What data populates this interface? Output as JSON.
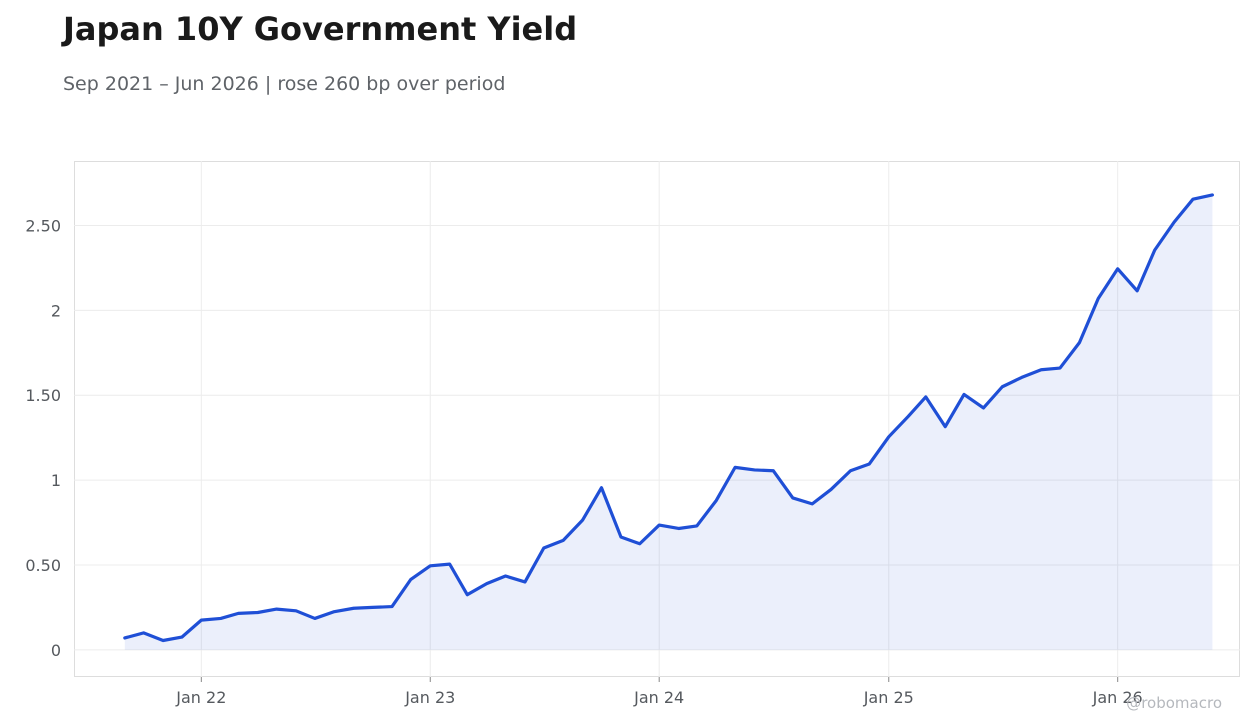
{
  "title": "Japan 10Y Government Yield",
  "subtitle": "Sep 2021 – Jun 2026 | rose 260 bp over period",
  "watermark": "@robomacro",
  "colors": {
    "line": "#1f4fd6",
    "fill": "#1f4fd6",
    "grid": "#ececec",
    "axis": "#dddddd",
    "text": "#55595e"
  },
  "chart_data": {
    "type": "area",
    "title": "Japan 10Y Government Yield",
    "xlabel": "",
    "ylabel": "",
    "grid": true,
    "xlim": [
      "2021-06-12",
      "2026-07-15"
    ],
    "ylim": [
      -0.16,
      2.88
    ],
    "y_ticks": [
      0,
      0.5,
      1,
      1.5,
      2,
      2.5
    ],
    "y_tick_labels": [
      "0",
      "0.50",
      "1",
      "1.50",
      "2",
      "2.50"
    ],
    "x_ticks": [
      "2022-01-01",
      "2023-01-01",
      "2024-01-01",
      "2025-01-01",
      "2026-01-01"
    ],
    "x_tick_labels": [
      "Jan 22",
      "Jan 23",
      "Jan 24",
      "Jan 25",
      "Jan 26"
    ],
    "series": [
      {
        "x": [
          "2021-09-01",
          "2021-10-01",
          "2021-11-01",
          "2021-12-01",
          "2022-01-01",
          "2022-02-01",
          "2022-03-01",
          "2022-04-01",
          "2022-05-01",
          "2022-06-01",
          "2022-07-01",
          "2022-08-01",
          "2022-09-01",
          "2022-10-01",
          "2022-11-01",
          "2022-12-01",
          "2023-01-01",
          "2023-02-01",
          "2023-03-01",
          "2023-04-01",
          "2023-05-01",
          "2023-06-01",
          "2023-07-01",
          "2023-08-01",
          "2023-09-01",
          "2023-10-01",
          "2023-11-01",
          "2023-12-01",
          "2024-01-01",
          "2024-02-01",
          "2024-03-01",
          "2024-04-01",
          "2024-05-01",
          "2024-06-01",
          "2024-07-01",
          "2024-08-01",
          "2024-09-01",
          "2024-10-01",
          "2024-11-01",
          "2024-12-01",
          "2025-01-01",
          "2025-02-01",
          "2025-03-01",
          "2025-04-01",
          "2025-05-01",
          "2025-06-01",
          "2025-07-01",
          "2025-08-01",
          "2025-09-01",
          "2025-10-01",
          "2025-11-01",
          "2025-12-01",
          "2026-01-01",
          "2026-02-01",
          "2026-03-01",
          "2026-04-01",
          "2026-05-01",
          "2026-06-01"
        ],
        "values": [
          0.07,
          0.1,
          0.055,
          0.075,
          0.175,
          0.185,
          0.215,
          0.22,
          0.24,
          0.23,
          0.185,
          0.225,
          0.245,
          0.25,
          0.255,
          0.415,
          0.495,
          0.505,
          0.325,
          0.39,
          0.435,
          0.4,
          0.6,
          0.645,
          0.765,
          0.955,
          0.665,
          0.625,
          0.735,
          0.715,
          0.73,
          0.88,
          1.075,
          1.06,
          1.055,
          0.895,
          0.86,
          0.945,
          1.055,
          1.095,
          1.255,
          1.375,
          1.49,
          1.315,
          1.505,
          1.425,
          1.55,
          1.605,
          1.65,
          1.66,
          1.81,
          2.07,
          2.245,
          2.115,
          2.355,
          2.52,
          2.655,
          2.68
        ]
      }
    ]
  }
}
